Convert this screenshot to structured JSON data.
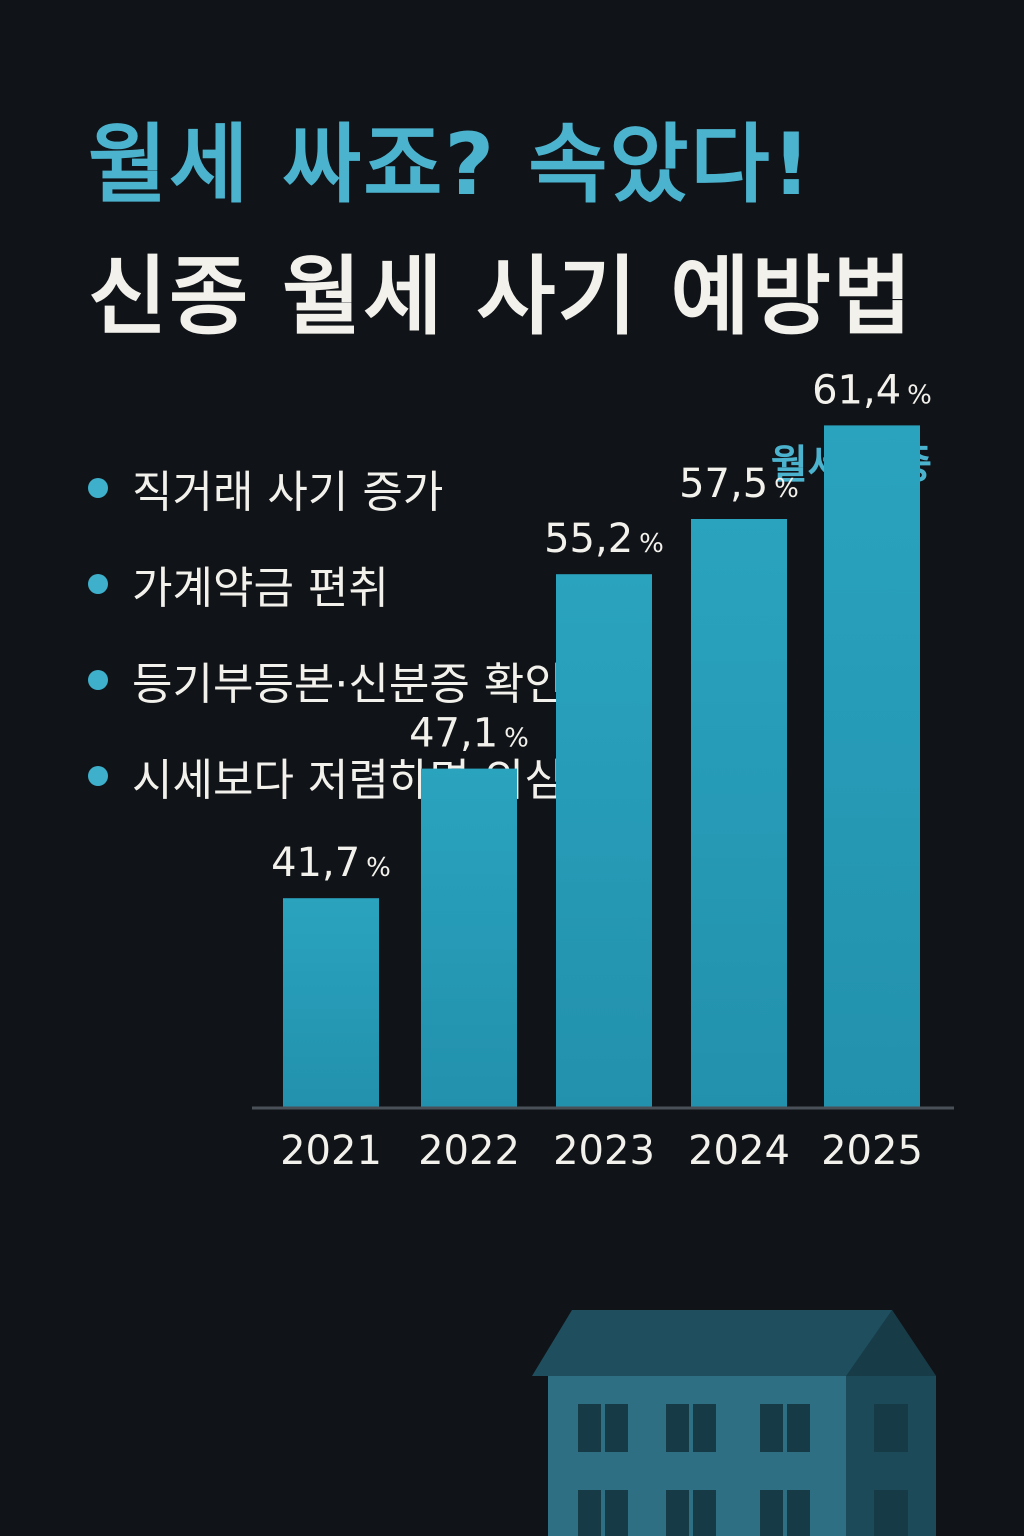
{
  "header": {
    "title_line1": "월세 싸죠? 속았다!",
    "title_line2": "신종 월세 사기 예방법"
  },
  "bullets": [
    "직거래 사기 증가",
    "가계약금 편취",
    "등기부등본·신분증 확인",
    "시세보다 저렴하면 의심"
  ],
  "colors": {
    "background": "#101317",
    "accent": "#4cb3cf",
    "bar": "#2b9fba",
    "text": "#f3f1ec"
  },
  "chart_data": {
    "type": "bar",
    "title": "월세 비중",
    "categories": [
      "2021",
      "2022",
      "2023",
      "2024",
      "2025"
    ],
    "values": [
      41.7,
      47.1,
      55.2,
      57.5,
      61.4
    ],
    "value_labels": [
      "41,7",
      "47,1",
      "55,2",
      "57,5",
      "61,4"
    ],
    "unit": "%",
    "xlabel": "",
    "ylabel": "",
    "ylim": [
      33,
      62
    ],
    "grid": false,
    "legend": "none"
  }
}
